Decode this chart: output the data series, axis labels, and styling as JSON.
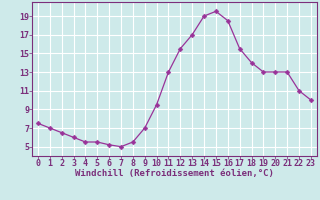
{
  "x": [
    0,
    1,
    2,
    3,
    4,
    5,
    6,
    7,
    8,
    9,
    10,
    11,
    12,
    13,
    14,
    15,
    16,
    17,
    18,
    19,
    20,
    21,
    22,
    23
  ],
  "y": [
    7.5,
    7.0,
    6.5,
    6.0,
    5.5,
    5.5,
    5.2,
    5.0,
    5.5,
    7.0,
    9.5,
    13.0,
    15.5,
    17.0,
    19.0,
    19.5,
    18.5,
    15.5,
    14.0,
    13.0,
    13.0,
    13.0,
    11.0,
    10.0
  ],
  "line_color": "#993399",
  "marker": "D",
  "marker_size": 2.5,
  "xlabel": "Windchill (Refroidissement éolien,°C)",
  "xlim": [
    -0.5,
    23.5
  ],
  "ylim": [
    4.0,
    20.5
  ],
  "yticks": [
    5,
    7,
    9,
    11,
    13,
    15,
    17,
    19
  ],
  "xticks": [
    0,
    1,
    2,
    3,
    4,
    5,
    6,
    7,
    8,
    9,
    10,
    11,
    12,
    13,
    14,
    15,
    16,
    17,
    18,
    19,
    20,
    21,
    22,
    23
  ],
  "bg_color": "#ceeaea",
  "grid_color": "#ffffff",
  "label_color": "#7b2f7b",
  "font_size_xlabel": 6.5,
  "font_size_ticks": 6.0,
  "linewidth": 0.9
}
